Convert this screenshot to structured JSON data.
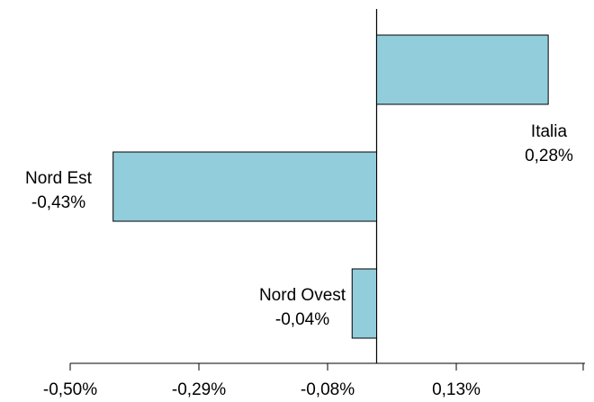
{
  "chart_data": {
    "type": "bar",
    "orientation": "horizontal",
    "categories": [
      "Italia",
      "Nord Est",
      "Nord Ovest"
    ],
    "values": [
      0.28,
      -0.43,
      -0.04
    ],
    "value_labels": [
      "0,28%",
      "-0,43%",
      "-0,04%"
    ],
    "title": "",
    "xlabel": "",
    "ylabel": "",
    "xlim": [
      -0.5,
      0.34
    ],
    "x_ticks": [
      -0.5,
      -0.29,
      -0.08,
      0.13
    ],
    "x_tick_labels": [
      "-0,50%",
      "-0,29%",
      "-0,08%",
      "0,13%"
    ],
    "grid": false,
    "legend": "none",
    "colors": {
      "bar_fill": "#92CDDC",
      "bar_stroke": "#000000",
      "axis": "#000000"
    }
  }
}
